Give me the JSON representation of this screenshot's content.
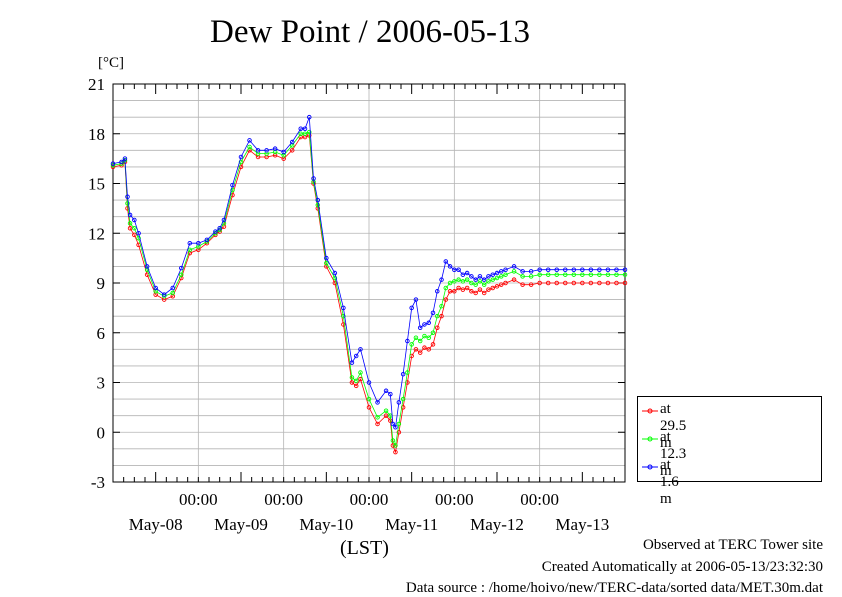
{
  "page": {
    "title": "Dew Point / 2006-05-13",
    "unit_label": "[°C]",
    "footer": {
      "line1": "Observed at TERC Tower site",
      "line2": "Created Automatically at 2006-05-13/23:32:30",
      "line3": "Data source : /home/hoivo/new/TERC-data/sorted data/MET.30m.dat"
    }
  },
  "chart_data": {
    "type": "line",
    "title": "Dew Point / 2006-05-13",
    "ylabel": "[°C]",
    "xlabel": "(LST)",
    "ylim": [
      -3,
      21
    ],
    "yticks": [
      "-3",
      "0",
      "3",
      "6",
      "9",
      "12",
      "15",
      "18",
      "21"
    ],
    "xlim": [
      0,
      6
    ],
    "x_unit": "days starting 2006-05-07 12:00 LST",
    "xtick_time_labels": [
      "00:00",
      "00:00",
      "00:00",
      "00:00",
      "00:00"
    ],
    "xtick_date_labels": [
      "May-08",
      "May-09",
      "May-10",
      "May-11",
      "May-12",
      "May-13"
    ],
    "grid": true,
    "legend_position": "bottom-right outside",
    "series": [
      {
        "name": "at 29.5 m",
        "color": "#ff0000",
        "x": [
          0.0,
          0.1,
          0.14,
          0.17,
          0.2,
          0.25,
          0.3,
          0.4,
          0.5,
          0.6,
          0.7,
          0.8,
          0.9,
          1.0,
          1.1,
          1.2,
          1.25,
          1.3,
          1.4,
          1.5,
          1.6,
          1.7,
          1.8,
          1.9,
          2.0,
          2.1,
          2.2,
          2.25,
          2.3,
          2.35,
          2.4,
          2.5,
          2.6,
          2.7,
          2.8,
          2.85,
          2.9,
          3.0,
          3.1,
          3.2,
          3.25,
          3.28,
          3.31,
          3.35,
          3.4,
          3.45,
          3.5,
          3.55,
          3.6,
          3.65,
          3.7,
          3.75,
          3.8,
          3.85,
          3.9,
          3.95,
          4.0,
          4.05,
          4.1,
          4.15,
          4.2,
          4.25,
          4.3,
          4.35,
          4.4,
          4.45,
          4.5,
          4.55,
          4.6,
          4.7,
          4.8,
          4.9,
          5.0,
          5.1,
          5.2,
          5.3,
          5.4,
          5.5,
          5.6,
          5.7,
          5.8,
          5.9,
          6.0
        ],
        "y": [
          16.0,
          16.1,
          16.3,
          13.5,
          12.3,
          11.9,
          11.3,
          9.5,
          8.3,
          8.0,
          8.2,
          9.3,
          10.8,
          11.0,
          11.4,
          11.9,
          12.1,
          12.4,
          14.3,
          16.0,
          17.0,
          16.6,
          16.6,
          16.7,
          16.5,
          17.0,
          17.8,
          17.8,
          17.9,
          15.0,
          13.5,
          10.0,
          9.0,
          6.5,
          3.0,
          2.8,
          3.2,
          1.5,
          0.5,
          1.0,
          0.7,
          -0.8,
          -1.2,
          0.0,
          1.5,
          3.0,
          4.6,
          5.0,
          4.8,
          5.1,
          5.0,
          5.3,
          6.3,
          7.0,
          8.0,
          8.5,
          8.5,
          8.7,
          8.6,
          8.7,
          8.5,
          8.4,
          8.6,
          8.4,
          8.6,
          8.7,
          8.8,
          8.9,
          9.0,
          9.2,
          8.9,
          8.9,
          9.0,
          9.0,
          9.0,
          9.0,
          9.0,
          9.0,
          9.0,
          9.0,
          9.0,
          9.0,
          9.0
        ]
      },
      {
        "name": "at 12.3 m",
        "color": "#00ff00",
        "x": [
          0.0,
          0.1,
          0.14,
          0.17,
          0.2,
          0.25,
          0.3,
          0.4,
          0.5,
          0.6,
          0.7,
          0.8,
          0.9,
          1.0,
          1.1,
          1.2,
          1.25,
          1.3,
          1.4,
          1.5,
          1.6,
          1.7,
          1.8,
          1.9,
          2.0,
          2.1,
          2.2,
          2.25,
          2.3,
          2.35,
          2.4,
          2.5,
          2.6,
          2.7,
          2.8,
          2.85,
          2.9,
          3.0,
          3.1,
          3.2,
          3.25,
          3.28,
          3.31,
          3.35,
          3.4,
          3.45,
          3.5,
          3.55,
          3.6,
          3.65,
          3.7,
          3.75,
          3.8,
          3.85,
          3.9,
          3.95,
          4.0,
          4.05,
          4.1,
          4.15,
          4.2,
          4.25,
          4.3,
          4.35,
          4.4,
          4.45,
          4.5,
          4.55,
          4.6,
          4.7,
          4.8,
          4.9,
          5.0,
          5.1,
          5.2,
          5.3,
          5.4,
          5.5,
          5.6,
          5.7,
          5.8,
          5.9,
          6.0
        ],
        "y": [
          16.1,
          16.2,
          16.4,
          13.8,
          12.6,
          12.3,
          11.7,
          9.8,
          8.5,
          8.2,
          8.4,
          9.5,
          11.0,
          11.2,
          11.5,
          12.0,
          12.2,
          12.6,
          14.6,
          16.3,
          17.2,
          16.8,
          16.8,
          16.9,
          16.7,
          17.3,
          18.0,
          18.0,
          18.1,
          15.1,
          13.7,
          10.2,
          9.3,
          7.0,
          3.3,
          3.1,
          3.6,
          2.0,
          0.9,
          1.3,
          1.0,
          -0.5,
          -0.8,
          0.5,
          2.0,
          3.6,
          5.3,
          5.7,
          5.5,
          5.8,
          5.7,
          6.0,
          7.0,
          7.6,
          8.7,
          9.0,
          9.1,
          9.2,
          9.1,
          9.2,
          9.0,
          8.9,
          9.1,
          8.9,
          9.1,
          9.2,
          9.3,
          9.4,
          9.5,
          9.7,
          9.4,
          9.4,
          9.5,
          9.5,
          9.5,
          9.5,
          9.5,
          9.5,
          9.5,
          9.5,
          9.5,
          9.5,
          9.5
        ]
      },
      {
        "name": "at 1.6 m",
        "color": "#0000ff",
        "x": [
          0.0,
          0.1,
          0.14,
          0.17,
          0.2,
          0.25,
          0.3,
          0.4,
          0.5,
          0.6,
          0.7,
          0.8,
          0.9,
          1.0,
          1.1,
          1.2,
          1.25,
          1.3,
          1.4,
          1.5,
          1.6,
          1.7,
          1.8,
          1.9,
          2.0,
          2.1,
          2.2,
          2.25,
          2.3,
          2.35,
          2.4,
          2.5,
          2.6,
          2.7,
          2.8,
          2.85,
          2.9,
          3.0,
          3.1,
          3.2,
          3.25,
          3.28,
          3.31,
          3.35,
          3.4,
          3.45,
          3.5,
          3.55,
          3.6,
          3.65,
          3.7,
          3.75,
          3.8,
          3.85,
          3.9,
          3.95,
          4.0,
          4.05,
          4.1,
          4.15,
          4.2,
          4.25,
          4.3,
          4.35,
          4.4,
          4.45,
          4.5,
          4.55,
          4.6,
          4.7,
          4.8,
          4.9,
          5.0,
          5.1,
          5.2,
          5.3,
          5.4,
          5.5,
          5.6,
          5.7,
          5.8,
          5.9,
          6.0
        ],
        "y": [
          16.2,
          16.3,
          16.5,
          14.2,
          13.1,
          12.8,
          12.0,
          10.0,
          8.7,
          8.3,
          8.7,
          9.9,
          11.4,
          11.4,
          11.6,
          12.1,
          12.3,
          12.8,
          14.9,
          16.6,
          17.6,
          17.0,
          17.0,
          17.1,
          16.9,
          17.5,
          18.3,
          18.3,
          19.0,
          15.3,
          14.0,
          10.5,
          9.6,
          7.5,
          4.2,
          4.6,
          5.0,
          3.0,
          1.8,
          2.5,
          2.3,
          0.5,
          0.3,
          1.8,
          3.5,
          5.5,
          7.5,
          8.0,
          6.3,
          6.5,
          6.6,
          7.2,
          8.5,
          9.2,
          10.3,
          10.0,
          9.8,
          9.8,
          9.5,
          9.6,
          9.4,
          9.2,
          9.4,
          9.2,
          9.4,
          9.5,
          9.6,
          9.7,
          9.8,
          10.0,
          9.7,
          9.7,
          9.8,
          9.8,
          9.8,
          9.8,
          9.8,
          9.8,
          9.8,
          9.8,
          9.8,
          9.8,
          9.8
        ]
      }
    ]
  }
}
